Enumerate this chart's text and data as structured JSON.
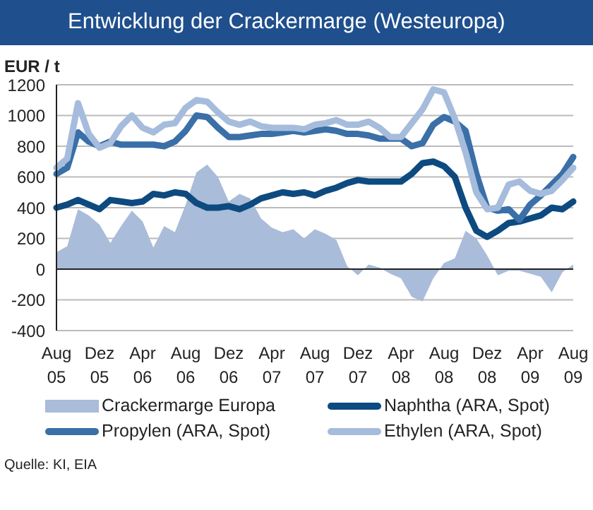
{
  "chart_data": {
    "type": "line",
    "title": "Entwicklung der Crackermarge (Westeuropa)",
    "ylabel": "EUR / t",
    "categories": [
      "Aug 05",
      null,
      null,
      null,
      "Dez 05",
      null,
      null,
      null,
      "Apr 06",
      null,
      null,
      null,
      "Aug 06",
      null,
      null,
      null,
      "Dez 06",
      null,
      null,
      null,
      "Apr 07",
      null,
      null,
      null,
      "Aug 07",
      null,
      null,
      null,
      "Dez 07",
      null,
      null,
      null,
      "Apr 08",
      null,
      null,
      null,
      "Aug 08",
      null,
      null,
      null,
      "Dez 08",
      null,
      null,
      null,
      "Apr 09",
      null,
      null,
      null,
      "Aug 09"
    ],
    "series": [
      {
        "name": "Crackermarge Europa",
        "type": "area",
        "color": "#a9bcd9",
        "values": [
          110,
          150,
          390,
          350,
          290,
          170,
          280,
          380,
          310,
          140,
          280,
          240,
          420,
          630,
          680,
          600,
          440,
          490,
          460,
          330,
          270,
          240,
          260,
          200,
          260,
          230,
          190,
          20,
          -40,
          30,
          10,
          -30,
          -60,
          -180,
          -210,
          -60,
          40,
          70,
          250,
          200,
          90,
          -40,
          -10,
          -10,
          -30,
          -50,
          -150,
          -20,
          30
        ]
      },
      {
        "name": "Naphtha (ARA, Spot)",
        "color": "#0d4a80",
        "values": [
          400,
          420,
          450,
          420,
          390,
          450,
          440,
          430,
          440,
          490,
          480,
          500,
          490,
          430,
          400,
          400,
          410,
          390,
          420,
          460,
          480,
          500,
          490,
          500,
          480,
          510,
          530,
          560,
          580,
          570,
          570,
          570,
          570,
          620,
          690,
          700,
          670,
          600,
          400,
          250,
          210,
          250,
          300,
          310,
          330,
          350,
          400,
          390,
          440
        ]
      },
      {
        "name": "Propylen (ARA, Spot)",
        "color": "#3a6fa8",
        "values": [
          620,
          660,
          890,
          830,
          800,
          830,
          810,
          810,
          810,
          810,
          800,
          830,
          900,
          1000,
          990,
          920,
          860,
          860,
          870,
          880,
          880,
          890,
          900,
          890,
          900,
          910,
          900,
          880,
          880,
          870,
          850,
          850,
          850,
          800,
          820,
          940,
          990,
          960,
          900,
          620,
          400,
          380,
          390,
          320,
          420,
          480,
          550,
          620,
          730
        ]
      },
      {
        "name": "Ethylen (ARA, Spot)",
        "color": "#a6bcdc",
        "values": [
          660,
          720,
          1080,
          880,
          790,
          820,
          930,
          1000,
          920,
          890,
          940,
          950,
          1050,
          1100,
          1090,
          1020,
          960,
          940,
          960,
          930,
          920,
          920,
          920,
          910,
          940,
          950,
          970,
          940,
          940,
          960,
          920,
          860,
          860,
          950,
          1040,
          1170,
          1150,
          980,
          760,
          500,
          390,
          400,
          550,
          570,
          510,
          490,
          510,
          580,
          660
        ]
      }
    ],
    "ylim": [
      -400,
      1200
    ],
    "yticks": [
      -400,
      -200,
      0,
      200,
      400,
      600,
      800,
      1000,
      1200
    ],
    "grid": "y",
    "legend": "bottom",
    "marker": "none",
    "line_style": "solid",
    "annotations": [
      "Quelle: KI, EIA"
    ]
  }
}
